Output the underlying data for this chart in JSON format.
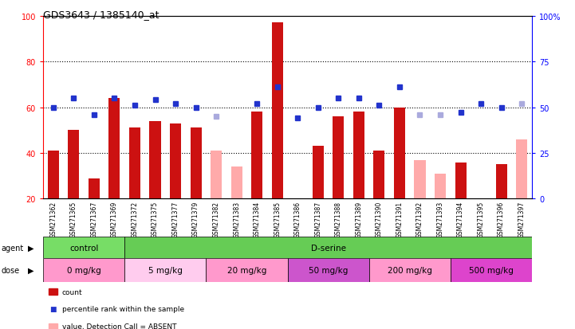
{
  "title": "GDS3643 / 1385140_at",
  "samples": [
    "GSM271362",
    "GSM271365",
    "GSM271367",
    "GSM271369",
    "GSM271372",
    "GSM271375",
    "GSM271377",
    "GSM271379",
    "GSM271382",
    "GSM271383",
    "GSM271384",
    "GSM271385",
    "GSM271386",
    "GSM271387",
    "GSM271388",
    "GSM271389",
    "GSM271390",
    "GSM271391",
    "GSM271392",
    "GSM271393",
    "GSM271394",
    "GSM271395",
    "GSM271396",
    "GSM271397"
  ],
  "red_bars": [
    41,
    50,
    29,
    64,
    51,
    54,
    53,
    51,
    null,
    null,
    58,
    97,
    null,
    43,
    56,
    58,
    41,
    60,
    null,
    null,
    36,
    null,
    35,
    null
  ],
  "blue_squares": [
    50,
    55,
    46,
    55,
    51,
    54,
    52,
    50,
    null,
    null,
    52,
    61,
    44,
    50,
    55,
    55,
    51,
    61,
    null,
    null,
    47,
    52,
    50,
    null
  ],
  "pink_bars": [
    null,
    null,
    null,
    null,
    null,
    null,
    null,
    null,
    41,
    34,
    null,
    null,
    null,
    null,
    null,
    null,
    null,
    null,
    37,
    31,
    null,
    null,
    null,
    46
  ],
  "lb_squares": [
    null,
    null,
    null,
    null,
    null,
    null,
    null,
    null,
    45,
    null,
    null,
    null,
    null,
    null,
    null,
    null,
    null,
    null,
    46,
    46,
    null,
    null,
    null,
    52
  ],
  "ylim_left": [
    20,
    100
  ],
  "ylim_right": [
    0,
    100
  ],
  "yticks_left": [
    20,
    40,
    60,
    80,
    100
  ],
  "yticks_right": [
    0,
    25,
    50,
    75,
    100
  ],
  "ytick_labels_right": [
    "0",
    "25",
    "50",
    "75",
    "100%"
  ],
  "bar_color_red": "#cc1111",
  "bar_color_pink": "#ffaaaa",
  "sq_blue": "#2233cc",
  "sq_lightblue": "#aaaadd",
  "agent_groups": [
    {
      "label": "control",
      "start": 0,
      "end": 3,
      "color": "#77dd66"
    },
    {
      "label": "D-serine",
      "start": 4,
      "end": 23,
      "color": "#66cc55"
    }
  ],
  "dose_groups": [
    {
      "label": "0 mg/kg",
      "start": 0,
      "end": 3,
      "color": "#ff99cc"
    },
    {
      "label": "5 mg/kg",
      "start": 4,
      "end": 7,
      "color": "#ffccee"
    },
    {
      "label": "20 mg/kg",
      "start": 8,
      "end": 11,
      "color": "#ff99cc"
    },
    {
      "label": "50 mg/kg",
      "start": 12,
      "end": 15,
      "color": "#cc55cc"
    },
    {
      "label": "200 mg/kg",
      "start": 16,
      "end": 19,
      "color": "#ff99cc"
    },
    {
      "label": "500 mg/kg",
      "start": 20,
      "end": 23,
      "color": "#dd44cc"
    }
  ],
  "xtick_bg": "#cccccc",
  "fig_bg": "#ffffff"
}
